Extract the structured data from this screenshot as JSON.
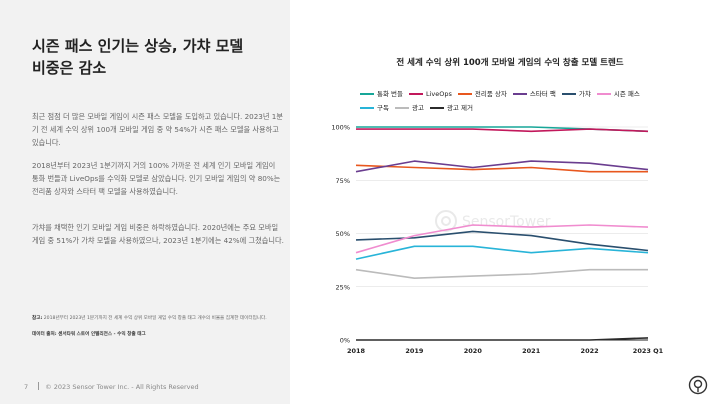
{
  "page": {
    "title": "시즌 패스 인기는 상승, 가챠 모델\n비중은 감소",
    "paragraphs": [
      "최근 점점 더 많은 모바일 게임이 시즌 패스 모델을 도입하고 있습니다. 2023년 1분기 전 세계 수익 상위 100개 모바일 게임 중 약 54%가 시즌 패스 모델을 사용하고 있습니다.",
      "2018년부터 2023년 1분기까지 거의 100% 가까운 전 세계 인기 모바일 게임이 통화 번들과 LiveOps를 수익화 모델로 삼았습니다. 인기 모바일 게임의 약 80%는 전리품 상자와 스타터 팩 모델을 사용하였습니다.",
      "가챠를 채택한 인기 모바일 게임 비중은 하락하였습니다. 2020년에는 주요 모바일 게임 중 51%가 가챠 모델을 사용하였으나, 2023년 1분기에는 42%에 그쳤습니다."
    ],
    "note_label": "참고:",
    "note_text": " 2018년부터 2023년 1분기까지 전 세계 수익 상위 모바일 게임 수익 창출 태그 개수의 비율을 집계한 데이터입니다.",
    "source_label": "데이터 출처: 센서타워 스토어 인텔리전스 - 수익 창출 태그",
    "footer_page": "7",
    "footer_copyright": "© 2023 Sensor Tower Inc. - All Rights Reserved",
    "watermark": "SensorTower"
  },
  "colors": {
    "left_bg": "#f2f2f2",
    "grid": "#d9d9d9"
  },
  "icons": [
    "sensor-tower-logo-icon"
  ],
  "chart_data": {
    "type": "line",
    "title": "전 세계 수익 상위 100개 모바일 게임의 수익 창출 모델 트렌드",
    "categories": [
      "2018",
      "2019",
      "2020",
      "2021",
      "2022",
      "2023 Q1"
    ],
    "ylim": [
      0,
      100
    ],
    "yticks": [
      "0%",
      "25%",
      "50%",
      "75%",
      "100%"
    ],
    "grid": true,
    "legend_position": "top",
    "series": [
      {
        "name": "통화 번들",
        "color": "#17a698",
        "values": [
          100,
          100,
          100,
          100,
          99,
          98
        ]
      },
      {
        "name": "LiveOps",
        "color": "#c2185b",
        "values": [
          99,
          99,
          99,
          98,
          99,
          98
        ]
      },
      {
        "name": "전리품 상자",
        "color": "#e8571e",
        "values": [
          82,
          81,
          80,
          81,
          79,
          79
        ]
      },
      {
        "name": "스타터 팩",
        "color": "#6a3d8f",
        "values": [
          79,
          84,
          81,
          84,
          83,
          80
        ]
      },
      {
        "name": "가챠",
        "color": "#2a4f6e",
        "values": [
          47,
          48,
          51,
          49,
          45,
          42
        ]
      },
      {
        "name": "시즌 패스",
        "color": "#f08ccf",
        "values": [
          41,
          49,
          54,
          53,
          54,
          53
        ]
      },
      {
        "name": "구독",
        "color": "#28b4d8",
        "values": [
          38,
          44,
          44,
          41,
          43,
          41
        ]
      },
      {
        "name": "광고",
        "color": "#bbbbbb",
        "values": [
          33,
          29,
          30,
          31,
          33,
          33
        ]
      },
      {
        "name": "광고 제거",
        "color": "#2b2b2b",
        "values": [
          0,
          0,
          0,
          0,
          0,
          1
        ]
      }
    ]
  }
}
